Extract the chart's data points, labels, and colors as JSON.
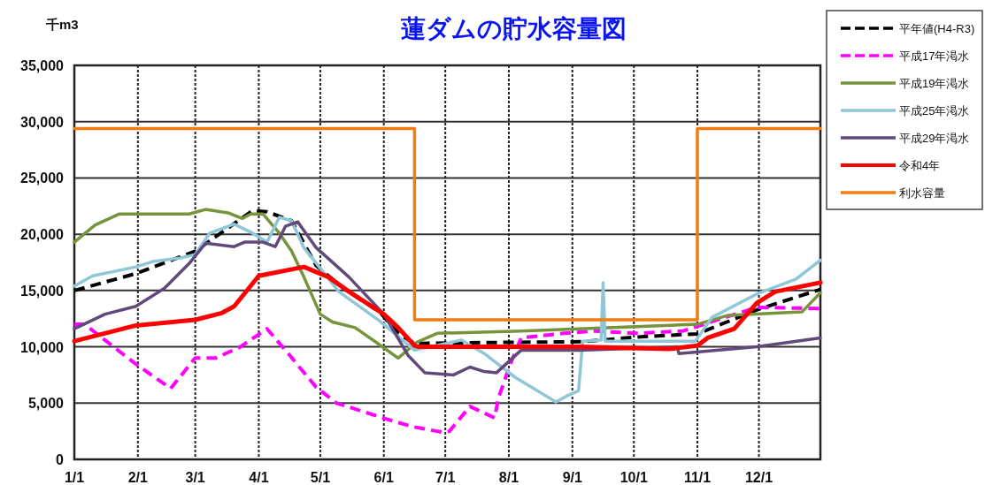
{
  "chart_data": {
    "type": "line",
    "title": "蓮ダムの貯水容量図",
    "ylabel": "千m3",
    "xlim": [
      "--01-01",
      "--12-31"
    ],
    "xticks": [
      {
        "value": "--01-01",
        "label": "1/1"
      },
      {
        "value": "--02-01",
        "label": "2/1"
      },
      {
        "value": "--03-01",
        "label": "3/1"
      },
      {
        "value": "--04-01",
        "label": "4/1"
      },
      {
        "value": "--05-01",
        "label": "5/1"
      },
      {
        "value": "--06-01",
        "label": "6/1"
      },
      {
        "value": "--07-01",
        "label": "7/1"
      },
      {
        "value": "--08-01",
        "label": "8/1"
      },
      {
        "value": "--09-01",
        "label": "9/1"
      },
      {
        "value": "--10-01",
        "label": "10/1"
      },
      {
        "value": "--11-01",
        "label": "11/1"
      },
      {
        "value": "--12-01",
        "label": "12/1"
      }
    ],
    "ylim": [
      0,
      35000
    ],
    "yticks": [
      {
        "value": 0,
        "label": "0"
      },
      {
        "value": 5000,
        "label": "5,000"
      },
      {
        "value": 10000,
        "label": "10,000"
      },
      {
        "value": 15000,
        "label": "15,000"
      },
      {
        "value": 20000,
        "label": "20,000"
      },
      {
        "value": 25000,
        "label": "25,000"
      },
      {
        "value": 30000,
        "label": "30,000"
      },
      {
        "value": 35000,
        "label": "35,000"
      }
    ],
    "grid": true,
    "legend": "right",
    "series": [
      {
        "name": "平年値(H4-R3)",
        "color": "#000000",
        "line_style": "dashed",
        "x": [
          "--01-01",
          "--01-31",
          "--03-01",
          "--03-29",
          "--04-05",
          "--04-17",
          "--04-29",
          "--05-13",
          "--05-30",
          "--06-08",
          "--06-16",
          "--08-01",
          "--09-06",
          "--10-01",
          "--11-01",
          "--12-01",
          "--12-31"
        ],
        "values": [
          15000,
          16500,
          18500,
          22100,
          22000,
          21200,
          17200,
          15100,
          13100,
          11200,
          10300,
          10400,
          10450,
          10850,
          11150,
          13350,
          15100
        ]
      },
      {
        "name": "平成17年渇水",
        "color": "#ff00ff",
        "line_style": "dashed",
        "x": [
          "--01-01",
          "--01-06",
          "--01-30",
          "--02-17",
          "--03-01",
          "--03-11",
          "--03-23",
          "--04-05",
          "--04-14",
          "--04-29",
          "--05-09",
          "--06-02",
          "--06-15",
          "--06-30",
          "--07-03",
          "--07-13",
          "--07-25",
          "--07-27",
          "--08-02",
          "--08-07",
          "--08-28",
          "--09-12",
          "--10-03",
          "--10-25",
          "--11-16",
          "--11-30",
          "--12-31"
        ],
        "values": [
          12000,
          12000,
          8600,
          6300,
          9000,
          9000,
          10000,
          11600,
          9700,
          6400,
          5000,
          3600,
          2900,
          2400,
          2500,
          4700,
          3700,
          5500,
          8600,
          10800,
          11200,
          11400,
          11200,
          11400,
          12700,
          13500,
          13400
        ]
      },
      {
        "name": "平成19年渇水",
        "color": "#77933c",
        "line_style": "solid",
        "x": [
          "--01-01",
          "--01-11",
          "--01-23",
          "--02-26",
          "--03-06",
          "--03-17",
          "--03-24",
          "--03-28",
          "--04-03",
          "--04-11",
          "--04-17",
          "--04-23",
          "--05-01",
          "--05-07",
          "--05-18",
          "--05-29",
          "--06-08",
          "--06-17",
          "--06-27",
          "--08-07",
          "--11-01",
          "--11-16",
          "--12-22",
          "--12-31"
        ],
        "values": [
          19300,
          20800,
          21800,
          21800,
          22200,
          21900,
          21400,
          21800,
          21800,
          20100,
          18500,
          16200,
          12900,
          12200,
          11700,
          10300,
          9000,
          10400,
          11200,
          11400,
          12000,
          12800,
          13100,
          14800
        ]
      },
      {
        "name": "平成25年渇水",
        "color": "#8fc6d8",
        "line_style": "solid",
        "x": [
          "--01-01",
          "--01-10",
          "--01-31",
          "--02-09",
          "--02-22",
          "--03-01",
          "--03-08",
          "--03-20",
          "--03-29",
          "--04-05",
          "--04-11",
          "--04-17",
          "--04-23",
          "--05-10",
          "--05-30",
          "--06-16",
          "--07-09",
          "--07-20",
          "--08-04",
          "--08-24",
          "--08-30",
          "--09-04",
          "--09-06",
          "--09-15",
          "--09-16",
          "--09-17",
          "--10-31",
          "--11-08",
          "--11-30",
          "--12-19",
          "--12-31"
        ],
        "values": [
          15400,
          16300,
          17100,
          17600,
          17900,
          18200,
          20100,
          20900,
          20100,
          19300,
          21500,
          21200,
          18800,
          14900,
          12300,
          9700,
          10600,
          9400,
          7300,
          5100,
          5700,
          6100,
          10500,
          10600,
          15700,
          10500,
          10500,
          12600,
          14700,
          16000,
          17700
        ]
      },
      {
        "name": "平成29年渇水",
        "color": "#604a7b",
        "line_style": "solid",
        "x": [
          "--01-01",
          "--01-16",
          "--01-31",
          "--02-14",
          "--02-26",
          "--03-06",
          "--03-20",
          "--03-25",
          "--04-03",
          "--04-09",
          "--04-14",
          "--04-20",
          "--04-29",
          "--05-15",
          "--06-01",
          "--06-13",
          "--06-21",
          "--07-05",
          "--07-13",
          "--07-20",
          "--07-26",
          "--08-07",
          "--09-04",
          "--10-22",
          "--10-23",
          "--11-30",
          "--12-31"
        ],
        "values": [
          11600,
          12900,
          13600,
          15200,
          17400,
          19200,
          18900,
          19300,
          19300,
          18900,
          20700,
          21100,
          18800,
          16200,
          12900,
          9200,
          7700,
          7500,
          8200,
          7800,
          7700,
          9700,
          9700,
          10000,
          9400,
          10000,
          10800
        ]
      },
      {
        "name": "令和4年",
        "color": "#ff0000",
        "line_style": "solid",
        "x": [
          "--01-01",
          "--01-31",
          "--03-01",
          "--03-14",
          "--03-20",
          "--04-01",
          "--04-23",
          "--05-05",
          "--05-15",
          "--06-01",
          "--06-08",
          "--06-16",
          "--06-18",
          "--09-04",
          "--10-18",
          "--11-01",
          "--11-06",
          "--11-19",
          "--11-30",
          "--12-09",
          "--12-31"
        ],
        "values": [
          10500,
          11900,
          12400,
          13000,
          13600,
          16300,
          17100,
          16200,
          14900,
          12900,
          11700,
          10100,
          10000,
          10000,
          9800,
          10100,
          10800,
          11600,
          13900,
          14900,
          15700
        ]
      },
      {
        "name": "利水容量",
        "color": "#f07c12",
        "line_style": "solid",
        "x": [
          "--01-01",
          "--06-16",
          "--06-16",
          "--11-01",
          "--11-01",
          "--12-31"
        ],
        "values": [
          29400,
          29400,
          12400,
          12400,
          29400,
          29400
        ]
      }
    ]
  }
}
